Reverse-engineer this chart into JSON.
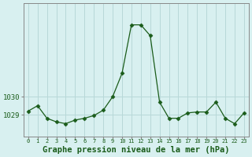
{
  "x": [
    0,
    1,
    2,
    3,
    4,
    5,
    6,
    7,
    8,
    9,
    10,
    11,
    12,
    13,
    14,
    15,
    16,
    17,
    18,
    19,
    20,
    21,
    22,
    23
  ],
  "y": [
    1029.2,
    1029.5,
    1028.8,
    1028.6,
    1028.5,
    1028.7,
    1028.8,
    1028.95,
    1029.25,
    1030.0,
    1031.3,
    1034.0,
    1034.0,
    1033.4,
    1029.7,
    1028.8,
    1028.8,
    1029.1,
    1029.15,
    1029.15,
    1029.7,
    1028.8,
    1028.5,
    1029.1
  ],
  "line_color": "#1a5c1a",
  "marker": "D",
  "marker_size": 2.5,
  "background_color": "#d8f0f0",
  "grid_color": "#b8d8d8",
  "xlabel": "Graphe pression niveau de la mer (hPa)",
  "xlabel_fontsize": 7.5,
  "tick_labels": [
    "0",
    "1",
    "2",
    "3",
    "4",
    "5",
    "6",
    "7",
    "8",
    "9",
    "10",
    "11",
    "12",
    "13",
    "14",
    "15",
    "16",
    "17",
    "18",
    "19",
    "20",
    "21",
    "22",
    "23"
  ],
  "yticks": [
    1029,
    1030
  ],
  "ylim": [
    1027.8,
    1035.2
  ],
  "xlim": [
    -0.5,
    23.5
  ],
  "tick_color": "#1a5c1a",
  "axis_color": "#888888"
}
